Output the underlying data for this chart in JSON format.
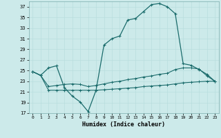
{
  "xlabel": "Humidex (Indice chaleur)",
  "bg_color": "#cceaea",
  "grid_color": "#b0d8d8",
  "line_color": "#1a6b6b",
  "xlim": [
    -0.5,
    23.5
  ],
  "ylim": [
    17,
    38
  ],
  "yticks": [
    17,
    19,
    21,
    23,
    25,
    27,
    29,
    31,
    33,
    35,
    37
  ],
  "xticks": [
    0,
    1,
    2,
    3,
    4,
    5,
    6,
    7,
    8,
    9,
    10,
    11,
    12,
    13,
    14,
    15,
    16,
    17,
    18,
    19,
    20,
    21,
    22,
    23
  ],
  "line1_x": [
    0,
    1,
    2,
    3,
    4,
    5,
    6,
    7,
    8,
    9,
    10,
    11,
    12,
    13,
    14,
    15,
    16,
    17,
    18,
    19,
    20,
    21,
    22,
    23
  ],
  "line1_y": [
    24.8,
    24.1,
    25.5,
    25.9,
    21.8,
    20.2,
    19.1,
    17.3,
    21.3,
    29.8,
    31.0,
    31.5,
    34.5,
    34.8,
    36.1,
    37.4,
    37.6,
    37.0,
    35.7,
    26.3,
    26.0,
    25.2,
    24.3,
    23.0
  ],
  "line2_x": [
    0,
    1,
    2,
    3,
    4,
    5,
    6,
    7,
    8,
    9,
    10,
    11,
    12,
    13,
    14,
    15,
    16,
    17,
    18,
    19,
    20,
    21,
    22,
    23
  ],
  "line2_y": [
    24.8,
    24.1,
    22.0,
    22.2,
    22.4,
    22.5,
    22.4,
    22.0,
    22.2,
    22.5,
    22.8,
    23.0,
    23.3,
    23.5,
    23.8,
    24.0,
    24.3,
    24.5,
    25.2,
    25.5,
    25.5,
    25.3,
    24.0,
    23.0
  ],
  "line3_x": [
    0,
    1,
    2,
    3,
    4,
    5,
    6,
    7,
    8,
    9,
    10,
    11,
    12,
    13,
    14,
    15,
    16,
    17,
    18,
    19,
    20,
    21,
    22,
    23
  ],
  "line3_y": [
    24.8,
    24.1,
    21.3,
    21.3,
    21.3,
    21.3,
    21.3,
    21.3,
    21.3,
    21.4,
    21.5,
    21.6,
    21.7,
    21.8,
    22.0,
    22.1,
    22.2,
    22.3,
    22.5,
    22.7,
    22.8,
    22.9,
    23.0,
    23.0
  ]
}
